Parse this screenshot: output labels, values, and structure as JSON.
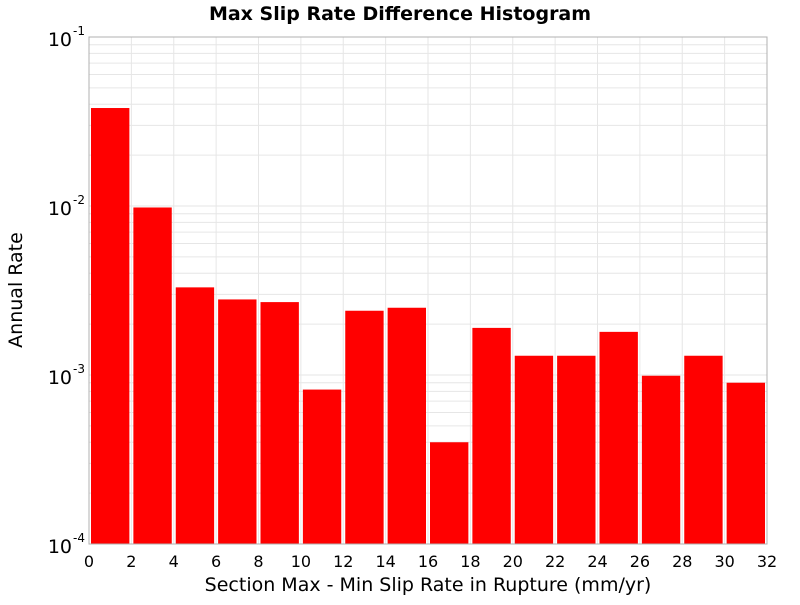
{
  "chart_data": {
    "type": "bar",
    "title": "Max Slip Rate Difference Histogram",
    "xlabel": "Section Max - Min Slip Rate in Rupture (mm/yr)",
    "ylabel": "Annual Rate",
    "x_ticks": [
      "0",
      "2",
      "4",
      "6",
      "8",
      "10",
      "12",
      "14",
      "16",
      "18",
      "20",
      "22",
      "24",
      "26",
      "28",
      "30",
      "32"
    ],
    "y_ticks": [
      {
        "base": "10",
        "exp": "-4",
        "value": 0.0001
      },
      {
        "base": "10",
        "exp": "-3",
        "value": 0.001
      },
      {
        "base": "10",
        "exp": "-2",
        "value": 0.01
      },
      {
        "base": "10",
        "exp": "-1",
        "value": 0.1
      }
    ],
    "xlim": [
      0,
      32
    ],
    "ylim": [
      0.0001,
      0.1
    ],
    "y_scale": "log",
    "bin_width": 2,
    "bins": [
      {
        "x0": 0,
        "x1": 2,
        "value": 0.038
      },
      {
        "x0": 2,
        "x1": 4,
        "value": 0.0098
      },
      {
        "x0": 4,
        "x1": 6,
        "value": 0.0033
      },
      {
        "x0": 6,
        "x1": 8,
        "value": 0.0028
      },
      {
        "x0": 8,
        "x1": 10,
        "value": 0.0027
      },
      {
        "x0": 10,
        "x1": 12,
        "value": 0.00082
      },
      {
        "x0": 12,
        "x1": 14,
        "value": 0.0024
      },
      {
        "x0": 14,
        "x1": 16,
        "value": 0.0025
      },
      {
        "x0": 16,
        "x1": 18,
        "value": 0.0004
      },
      {
        "x0": 18,
        "x1": 20,
        "value": 0.0019
      },
      {
        "x0": 20,
        "x1": 22,
        "value": 0.0013
      },
      {
        "x0": 22,
        "x1": 24,
        "value": 0.0013
      },
      {
        "x0": 24,
        "x1": 26,
        "value": 0.0018
      },
      {
        "x0": 26,
        "x1": 28,
        "value": 0.00099
      },
      {
        "x0": 28,
        "x1": 30,
        "value": 0.0013
      },
      {
        "x0": 30,
        "x1": 32,
        "value": 0.0009
      }
    ],
    "bar_color": "#ff0000",
    "grid": true,
    "grid_color": "#e6e6e6",
    "frame_color": "#b0b0b0",
    "legend": "none"
  }
}
